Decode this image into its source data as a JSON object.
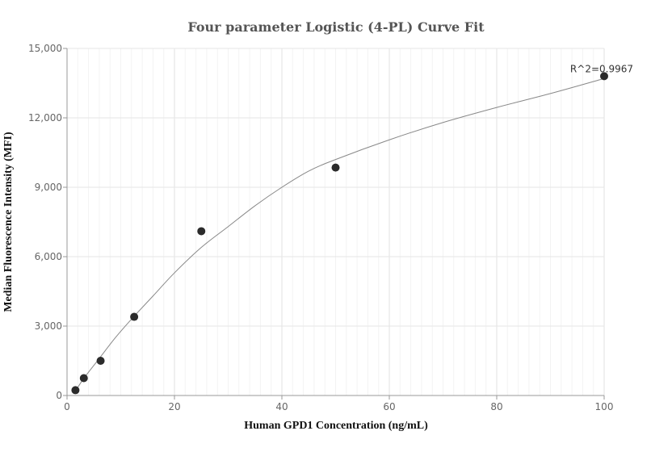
{
  "chart_data": {
    "type": "scatter",
    "title": "Four parameter Logistic (4-PL) Curve Fit",
    "xlabel": "Human GPD1 Concentration (ng/mL)",
    "ylabel": "Median Fluorescence Intensity (MFI)",
    "xlim": [
      0,
      100
    ],
    "ylim": [
      0,
      15000
    ],
    "x_ticks": [
      0,
      20,
      40,
      60,
      80,
      100
    ],
    "y_ticks": [
      0,
      3000,
      6000,
      9000,
      12000,
      15000
    ],
    "x_tick_labels": [
      "0",
      "20",
      "40",
      "60",
      "80",
      "100"
    ],
    "y_tick_labels": [
      "0",
      "3,000",
      "6,000",
      "9,000",
      "12,000",
      "15,000"
    ],
    "grid": true,
    "points": [
      {
        "x": 1.5625,
        "y": 230
      },
      {
        "x": 3.125,
        "y": 750
      },
      {
        "x": 6.25,
        "y": 1500
      },
      {
        "x": 12.5,
        "y": 3400
      },
      {
        "x": 25,
        "y": 7100
      },
      {
        "x": 50,
        "y": 9850
      },
      {
        "x": 100,
        "y": 13800
      }
    ],
    "fit_curve": [
      {
        "x": 1.5,
        "y": 160
      },
      {
        "x": 3,
        "y": 700
      },
      {
        "x": 6,
        "y": 1600
      },
      {
        "x": 9,
        "y": 2500
      },
      {
        "x": 12,
        "y": 3300
      },
      {
        "x": 16,
        "y": 4300
      },
      {
        "x": 20,
        "y": 5300
      },
      {
        "x": 25,
        "y": 6400
      },
      {
        "x": 30,
        "y": 7300
      },
      {
        "x": 35,
        "y": 8200
      },
      {
        "x": 40,
        "y": 9000
      },
      {
        "x": 45,
        "y": 9700
      },
      {
        "x": 50,
        "y": 10200
      },
      {
        "x": 60,
        "y": 11050
      },
      {
        "x": 70,
        "y": 11800
      },
      {
        "x": 80,
        "y": 12450
      },
      {
        "x": 90,
        "y": 13050
      },
      {
        "x": 100,
        "y": 13700
      }
    ],
    "annotation": "R^2=0.9967",
    "colors": {
      "point": "#2b2b2b",
      "curve": "#888888",
      "grid": "#e6e6e6",
      "axis": "#999999"
    }
  }
}
